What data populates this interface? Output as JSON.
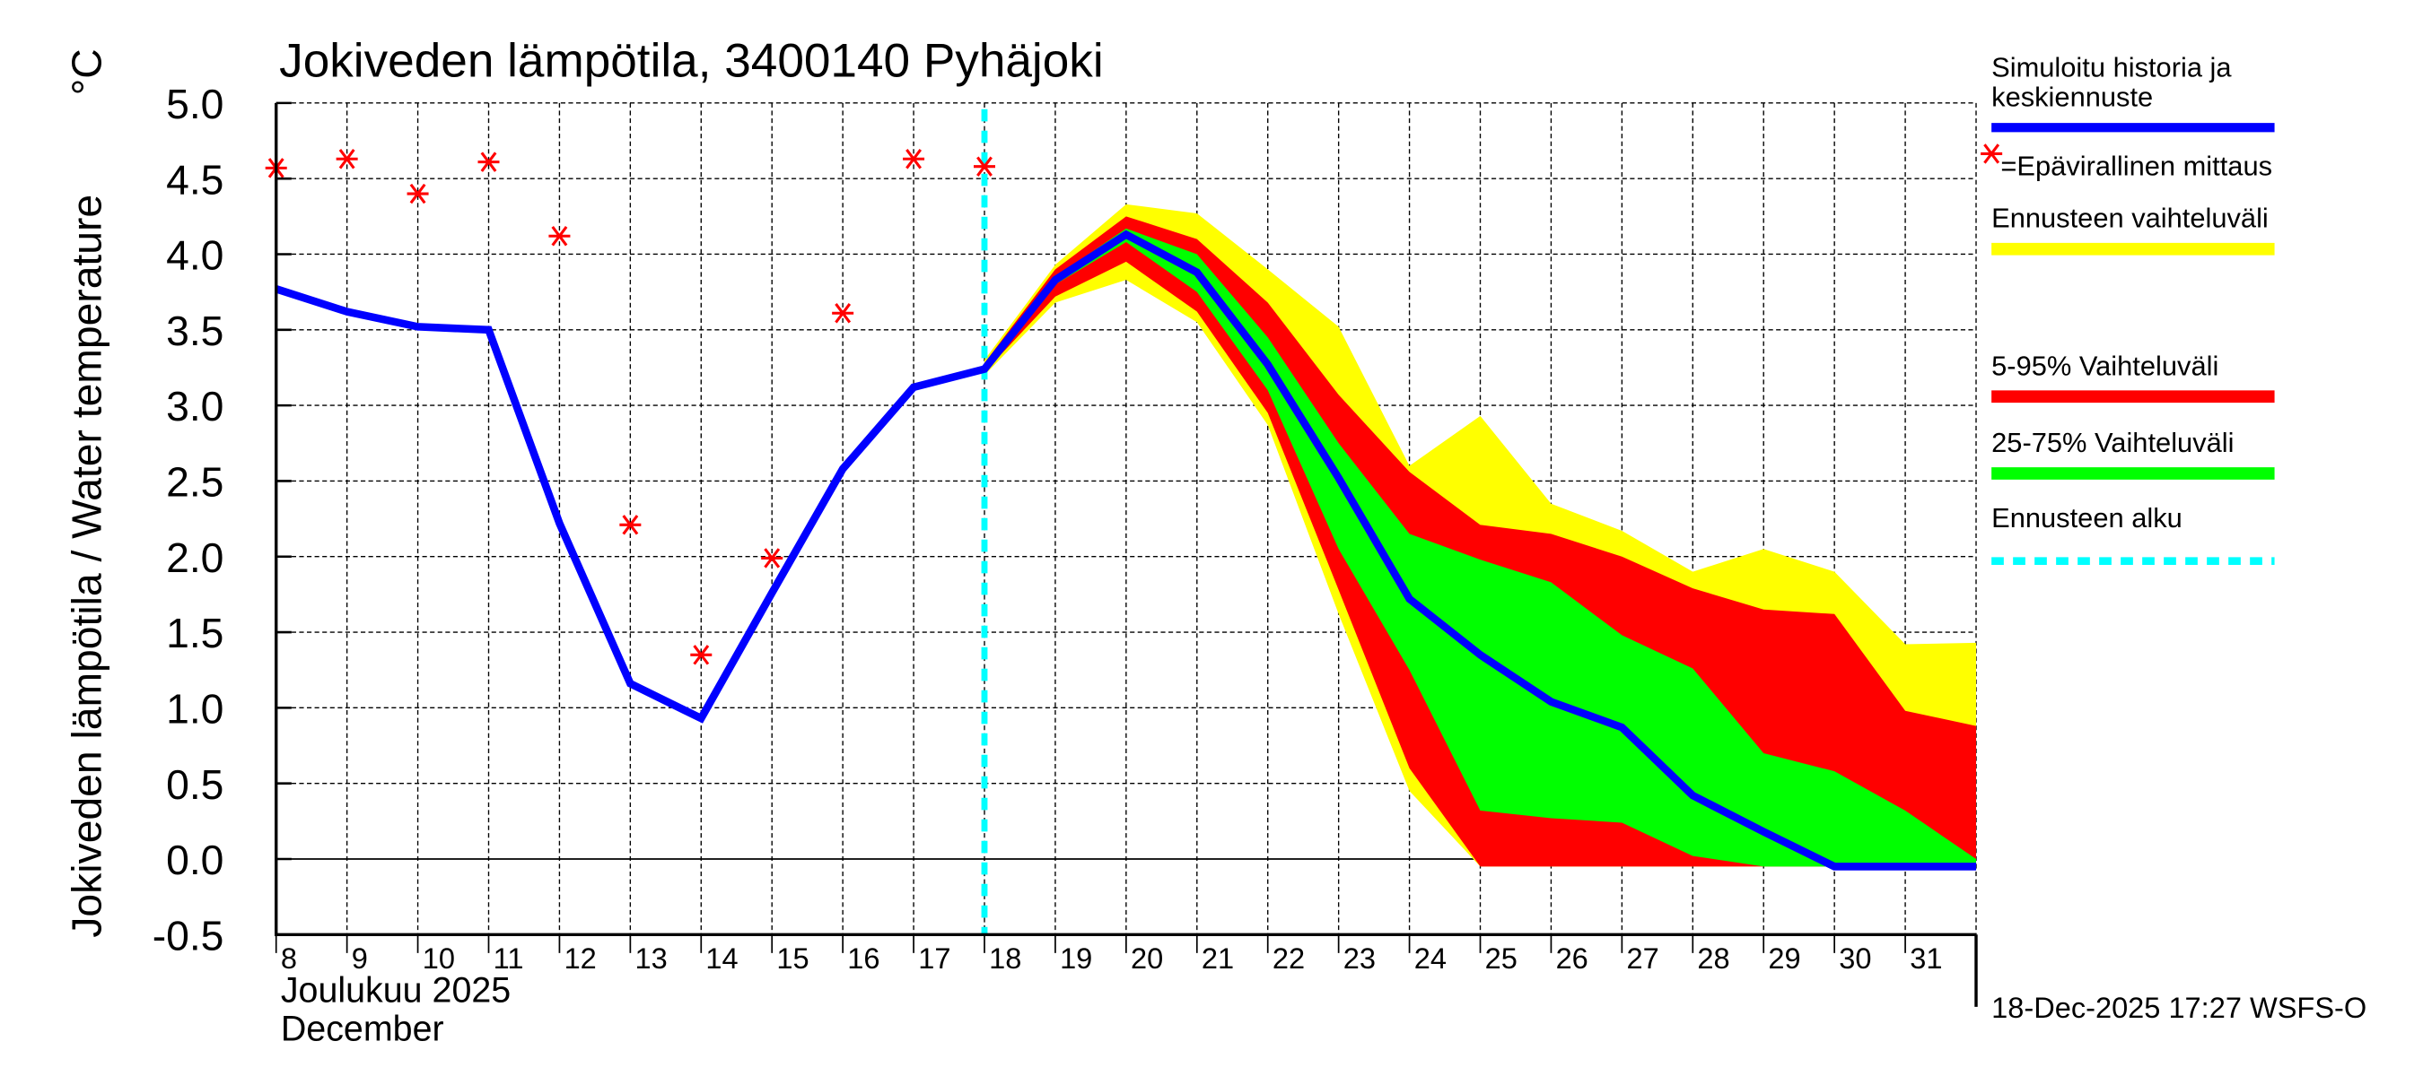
{
  "chart_data": {
    "type": "line",
    "title": "Jokiveden lämpötila, 3400140 Pyhäjoki",
    "ylabel": "Jokiveden lämpötila / Water temperature",
    "yunit": "°C",
    "ylim": [
      -0.5,
      5.0
    ],
    "yticks": [
      "-0.5",
      "0.0",
      "0.5",
      "1.0",
      "1.5",
      "2.0",
      "2.5",
      "3.0",
      "3.5",
      "4.0",
      "4.5",
      "5.0"
    ],
    "xlim": [
      8,
      32
    ],
    "xticks": [
      "8",
      "9",
      "10",
      "11",
      "12",
      "13",
      "14",
      "15",
      "16",
      "17",
      "18",
      "19",
      "20",
      "21",
      "22",
      "23",
      "24",
      "25",
      "26",
      "27",
      "28",
      "29",
      "30",
      "31"
    ],
    "xlabel_line1": "Joulukuu  2025",
    "xlabel_line2": "December",
    "grid": true,
    "forecast_start": 18,
    "footer": "18-Dec-2025 17:27 WSFS-O",
    "series": [
      {
        "name": "Simuloitu historia ja keskiennuste",
        "color": "#0000ff",
        "x": [
          8,
          9,
          10,
          11,
          12,
          13,
          14,
          15,
          16,
          17,
          18,
          19,
          20,
          21,
          22,
          23,
          24,
          25,
          26,
          27,
          28,
          29,
          30,
          31,
          32
        ],
        "values": [
          3.77,
          3.62,
          3.52,
          3.5,
          2.22,
          1.16,
          0.93,
          1.76,
          2.58,
          3.12,
          3.24,
          3.83,
          4.13,
          3.88,
          3.27,
          2.52,
          1.72,
          1.35,
          1.04,
          0.87,
          0.42,
          0.18,
          -0.05,
          -0.05,
          -0.05
        ]
      },
      {
        "name": "=Epävirallinen mittaus",
        "color": "#ff0000",
        "type": "scatter",
        "x": [
          8,
          9,
          10,
          11,
          12,
          13,
          14,
          15,
          16,
          17,
          18
        ],
        "values": [
          4.57,
          4.63,
          4.4,
          4.61,
          4.12,
          2.21,
          1.35,
          1.99,
          3.61,
          4.63,
          4.58
        ]
      }
    ],
    "bands": {
      "x": [
        18,
        19,
        20,
        21,
        22,
        23,
        24,
        25,
        26,
        27,
        28,
        29,
        30,
        31,
        32
      ],
      "list": [
        {
          "name": "Ennusteen vaihteluväli",
          "color": "#ffff00",
          "upper": [
            3.3,
            3.93,
            4.33,
            4.27,
            3.9,
            3.52,
            2.6,
            2.93,
            2.35,
            2.17,
            1.9,
            2.05,
            1.9,
            1.42,
            1.43
          ],
          "lower": [
            3.2,
            3.68,
            3.83,
            3.55,
            2.87,
            1.62,
            0.45,
            -0.05,
            -0.05,
            -0.05,
            -0.05,
            -0.05,
            -0.05,
            -0.05,
            -0.05
          ]
        },
        {
          "name": "5-95% Vaihteluväli",
          "color": "#ff0000",
          "upper": [
            3.28,
            3.9,
            4.25,
            4.1,
            3.68,
            3.07,
            2.56,
            2.21,
            2.15,
            2.0,
            1.79,
            1.65,
            1.62,
            0.98,
            0.88
          ],
          "lower": [
            3.22,
            3.72,
            3.95,
            3.62,
            2.95,
            1.78,
            0.6,
            -0.05,
            -0.05,
            -0.05,
            -0.05,
            -0.05,
            -0.05,
            -0.05,
            -0.05
          ]
        },
        {
          "name": "25-75% Vaihteluväli",
          "color": "#00ff00",
          "upper": [
            3.26,
            3.85,
            4.17,
            4.0,
            3.45,
            2.75,
            2.15,
            1.98,
            1.83,
            1.48,
            1.26,
            0.7,
            0.58,
            0.32,
            0.0
          ],
          "lower": [
            3.24,
            3.8,
            4.08,
            3.75,
            3.1,
            2.05,
            1.25,
            0.32,
            0.27,
            0.24,
            0.02,
            -0.05,
            -0.05,
            -0.05,
            -0.05
          ]
        }
      ]
    },
    "legend": {
      "placement": "right",
      "items": [
        {
          "line1": "Simuloitu historia ja",
          "line2": "keskiennuste",
          "color": "#0000ff",
          "style": "line"
        },
        {
          "line1": "=Epävirallinen mittaus",
          "color": "#ff0000",
          "style": "star"
        },
        {
          "line1": "Ennusteen vaihteluväli",
          "color": "#ffff00",
          "style": "band"
        },
        {
          "line1": "5-95% Vaihteluväli",
          "color": "#ff0000",
          "style": "band"
        },
        {
          "line1": "25-75% Vaihteluväli",
          "color": "#00ff00",
          "style": "band"
        },
        {
          "line1": "Ennusteen alku",
          "color": "#00ffff",
          "style": "dashed"
        }
      ]
    }
  }
}
